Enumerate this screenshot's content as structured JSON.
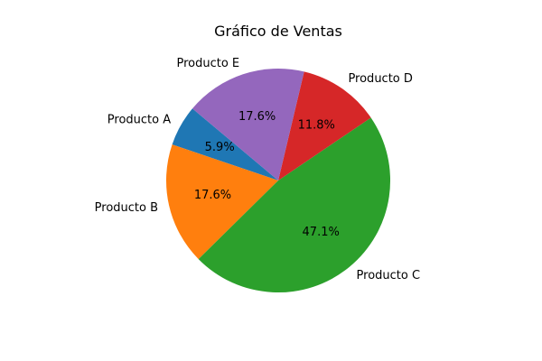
{
  "chart_data": {
    "type": "pie",
    "title": "Gráfico de Ventas",
    "labels": [
      "Producto A",
      "Producto B",
      "Producto C",
      "Producto D",
      "Producto E"
    ],
    "values": [
      5.9,
      17.6,
      47.1,
      11.8,
      17.6
    ],
    "percent_labels": [
      "5.9%",
      "17.6%",
      "47.1%",
      "11.8%",
      "17.6%"
    ],
    "colors": [
      "#1f77b4",
      "#ff7f0e",
      "#2ca02c",
      "#d62728",
      "#9467bd"
    ],
    "start_angle_deg": 140,
    "direction": "counterclockwise",
    "legend": "none"
  }
}
